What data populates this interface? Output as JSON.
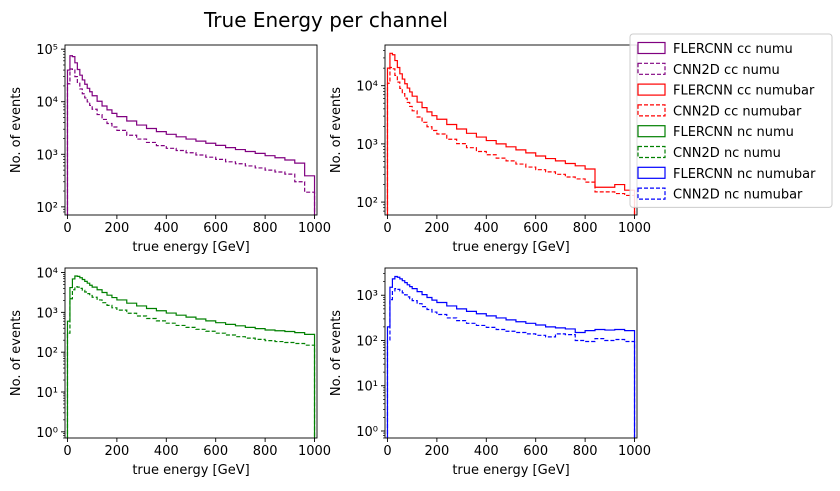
{
  "figure": {
    "title": "True Energy per channel",
    "legend": {
      "placement": "right",
      "entries": [
        {
          "label": "FLERCNN cc numu",
          "color": "#800080",
          "dashed": false
        },
        {
          "label": "CNN2D cc numu",
          "color": "#800080",
          "dashed": true
        },
        {
          "label": "FLERCNN cc numubar",
          "color": "#ff0000",
          "dashed": false
        },
        {
          "label": "CNN2D cc numubar",
          "color": "#ff0000",
          "dashed": true
        },
        {
          "label": "FLERCNN nc numu",
          "color": "#008000",
          "dashed": false
        },
        {
          "label": "CNN2D nc numu",
          "color": "#008000",
          "dashed": true
        },
        {
          "label": "FLERCNN nc numubar",
          "color": "#0000ff",
          "dashed": false
        },
        {
          "label": "CNN2D nc numubar",
          "color": "#0000ff",
          "dashed": true
        }
      ]
    }
  },
  "chart_data": [
    {
      "type": "histogram",
      "panel": "top-left",
      "xlabel": "true energy [GeV]",
      "ylabel": "No. of events",
      "xlim": [
        -10,
        1010
      ],
      "xticks": [
        0,
        200,
        400,
        600,
        800,
        1000
      ],
      "yscale": "log",
      "ylim": [
        70,
        120000
      ],
      "yticks": [
        {
          "value": 100,
          "label": "10²"
        },
        {
          "value": 1000,
          "label": "10³"
        },
        {
          "value": 10000,
          "label": "10⁴"
        },
        {
          "value": 100000,
          "label": "10⁵"
        }
      ],
      "bin_edges": [
        0,
        10,
        20,
        30,
        40,
        50,
        60,
        70,
        80,
        90,
        100,
        120,
        140,
        160,
        180,
        200,
        240,
        280,
        320,
        360,
        400,
        440,
        480,
        520,
        560,
        600,
        640,
        680,
        720,
        760,
        800,
        840,
        880,
        920,
        960,
        1000
      ],
      "series": [
        {
          "name": "FLERCNN cc numu",
          "color": "#800080",
          "dashed": false,
          "values": [
            40000,
            75000,
            72000,
            55000,
            41000,
            32000,
            26000,
            21500,
            18000,
            15500,
            13000,
            10200,
            8300,
            7000,
            6000,
            5200,
            4300,
            3600,
            3100,
            2700,
            2400,
            2150,
            1950,
            1780,
            1620,
            1480,
            1340,
            1230,
            1130,
            1040,
            940,
            860,
            780,
            680,
            390
          ]
        },
        {
          "name": "CNN2D cc numu",
          "color": "#800080",
          "dashed": true,
          "values": [
            22000,
            42000,
            40000,
            30000,
            22500,
            17500,
            14200,
            11800,
            9900,
            8500,
            7200,
            5700,
            4600,
            3850,
            3300,
            2850,
            2300,
            1950,
            1680,
            1460,
            1300,
            1180,
            1070,
            970,
            880,
            800,
            720,
            660,
            600,
            550,
            500,
            460,
            420,
            300,
            190
          ]
        }
      ]
    },
    {
      "type": "histogram",
      "panel": "top-right",
      "xlabel": "true energy [GeV]",
      "ylabel": "No. of events",
      "xlim": [
        -10,
        1010
      ],
      "xticks": [
        0,
        200,
        400,
        600,
        800,
        1000
      ],
      "yscale": "log",
      "ylim": [
        60,
        50000
      ],
      "yticks": [
        {
          "value": 100,
          "label": "10²"
        },
        {
          "value": 1000,
          "label": "10³"
        },
        {
          "value": 10000,
          "label": "10⁴"
        }
      ],
      "bin_edges": [
        0,
        10,
        20,
        30,
        40,
        50,
        60,
        70,
        80,
        90,
        100,
        120,
        140,
        160,
        180,
        200,
        240,
        280,
        320,
        360,
        400,
        440,
        480,
        520,
        560,
        600,
        640,
        680,
        720,
        760,
        800,
        840,
        880,
        920,
        960,
        1000
      ],
      "series": [
        {
          "name": "FLERCNN cc numubar",
          "color": "#ff0000",
          "dashed": false,
          "values": [
            20000,
            36000,
            34000,
            27000,
            20500,
            16000,
            13000,
            10800,
            9100,
            7800,
            6600,
            5200,
            4200,
            3550,
            3050,
            2650,
            2150,
            1800,
            1520,
            1310,
            1140,
            1000,
            890,
            790,
            700,
            620,
            560,
            510,
            460,
            420,
            370,
            180,
            180,
            200,
            160
          ]
        },
        {
          "name": "CNN2D cc numubar",
          "color": "#ff0000",
          "dashed": true,
          "values": [
            11000,
            20500,
            19500,
            15000,
            11500,
            9000,
            7300,
            6100,
            5150,
            4400,
            3700,
            2900,
            2350,
            1970,
            1700,
            1480,
            1200,
            1010,
            860,
            740,
            650,
            570,
            510,
            450,
            400,
            360,
            330,
            300,
            270,
            250,
            220,
            150,
            150,
            140,
            130
          ]
        }
      ]
    },
    {
      "type": "histogram",
      "panel": "bottom-left",
      "xlabel": "true energy [GeV]",
      "ylabel": "No. of events",
      "xlim": [
        -10,
        1010
      ],
      "xticks": [
        0,
        200,
        400,
        600,
        800,
        1000
      ],
      "yscale": "log",
      "ylim": [
        0.7,
        13000
      ],
      "yticks": [
        {
          "value": 1,
          "label": "10⁰"
        },
        {
          "value": 10,
          "label": "10¹"
        },
        {
          "value": 100,
          "label": "10²"
        },
        {
          "value": 1000,
          "label": "10³"
        },
        {
          "value": 10000,
          "label": "10⁴"
        }
      ],
      "bin_edges": [
        0,
        10,
        20,
        30,
        40,
        50,
        60,
        70,
        80,
        90,
        100,
        120,
        140,
        160,
        180,
        200,
        240,
        280,
        320,
        360,
        400,
        440,
        480,
        520,
        560,
        600,
        640,
        680,
        720,
        760,
        800,
        840,
        880,
        920,
        960,
        1000
      ],
      "series": [
        {
          "name": "FLERCNN nc numu",
          "color": "#008000",
          "dashed": false,
          "values": [
            600,
            4200,
            6900,
            8200,
            8000,
            7400,
            6700,
            6000,
            5400,
            4800,
            4300,
            3700,
            3150,
            2700,
            2350,
            2050,
            1700,
            1450,
            1250,
            1100,
            960,
            850,
            760,
            680,
            610,
            550,
            500,
            460,
            420,
            390,
            360,
            345,
            330,
            310,
            280
          ]
        },
        {
          "name": "CNN2D nc numu",
          "color": "#008000",
          "dashed": true,
          "values": [
            300,
            2200,
            3700,
            4400,
            4300,
            4000,
            3600,
            3250,
            2950,
            2650,
            2400,
            2050,
            1750,
            1500,
            1300,
            1140,
            950,
            810,
            700,
            610,
            535,
            470,
            420,
            375,
            335,
            300,
            270,
            245,
            225,
            210,
            195,
            185,
            175,
            165,
            150
          ]
        }
      ]
    },
    {
      "type": "histogram",
      "panel": "bottom-right",
      "xlabel": "true energy [GeV]",
      "ylabel": "No. of events",
      "xlim": [
        -10,
        1010
      ],
      "xticks": [
        0,
        200,
        400,
        600,
        800,
        1000
      ],
      "yscale": "log",
      "ylim": [
        0.7,
        4000
      ],
      "yticks": [
        {
          "value": 1,
          "label": "10⁰"
        },
        {
          "value": 10,
          "label": "10¹"
        },
        {
          "value": 100,
          "label": "10²"
        },
        {
          "value": 1000,
          "label": "10³"
        }
      ],
      "bin_edges": [
        0,
        10,
        20,
        30,
        40,
        50,
        60,
        70,
        80,
        90,
        100,
        120,
        140,
        160,
        180,
        200,
        240,
        280,
        320,
        360,
        400,
        440,
        480,
        520,
        560,
        600,
        640,
        680,
        720,
        760,
        800,
        840,
        880,
        920,
        960,
        1000
      ],
      "series": [
        {
          "name": "FLERCNN nc numubar",
          "color": "#0000ff",
          "dashed": false,
          "values": [
            200,
            1500,
            2300,
            2600,
            2500,
            2300,
            2100,
            1900,
            1700,
            1550,
            1400,
            1200,
            1030,
            890,
            780,
            690,
            580,
            500,
            440,
            390,
            350,
            315,
            285,
            260,
            240,
            220,
            200,
            190,
            180,
            150,
            165,
            175,
            170,
            175,
            165
          ]
        },
        {
          "name": "CNN2D nc numubar",
          "color": "#0000ff",
          "dashed": true,
          "values": [
            100,
            800,
            1250,
            1400,
            1350,
            1250,
            1130,
            1020,
            920,
            840,
            760,
            650,
            560,
            485,
            425,
            375,
            315,
            275,
            240,
            215,
            195,
            175,
            160,
            150,
            140,
            130,
            120,
            140,
            135,
            100,
            95,
            110,
            100,
            105,
            95
          ]
        }
      ]
    }
  ]
}
